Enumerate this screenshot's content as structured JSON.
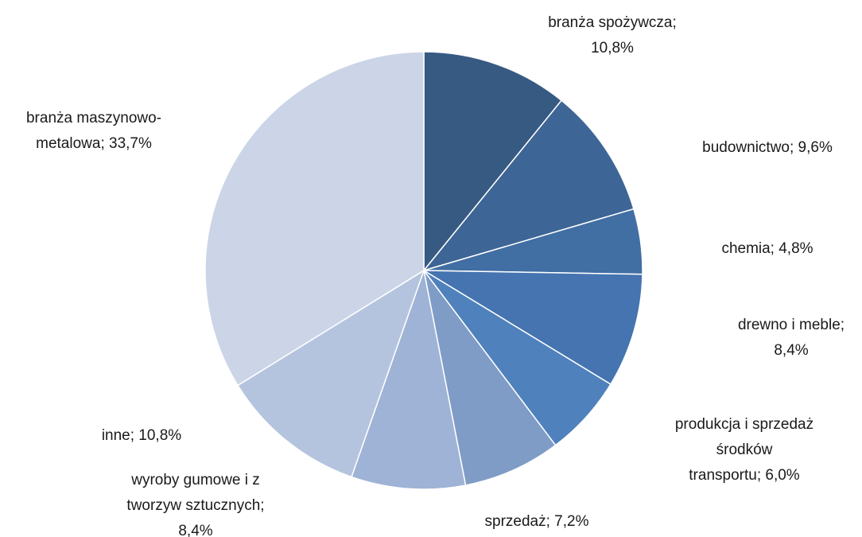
{
  "chart_data": {
    "type": "pie",
    "categories": [
      "branża spożywcza",
      "budownictwo",
      "chemia",
      "drewno i meble",
      "produkcja i sprzedaż środków transportu",
      "sprzedaż",
      "wyroby gumowe i z tworzyw sztucznych",
      "inne",
      "branża maszynowo-metalowa"
    ],
    "values": [
      10.8,
      9.6,
      4.8,
      8.4,
      6.0,
      7.2,
      8.4,
      10.8,
      33.7
    ],
    "value_labels": [
      "branża spożywcza;\n10,8%",
      "budownictwo; 9,6%",
      "chemia; 4,8%",
      "drewno i meble;\n8,4%",
      "produkcja i sprzedaż\nśrodków\ntransportu; 6,0%",
      "sprzedaż; 7,2%",
      "wyroby gumowe i z\ntworzyw sztucznych;\n8,4%",
      "inne; 10,8%",
      "branża maszynowo-\nmetalowa; 33,7%"
    ],
    "colors": [
      "#375a83",
      "#3d6596",
      "#416ea3",
      "#4574b0",
      "#4f81bd",
      "#7f9cc7",
      "#9eb3d5",
      "#b5c4de",
      "#cbd5e7"
    ]
  }
}
